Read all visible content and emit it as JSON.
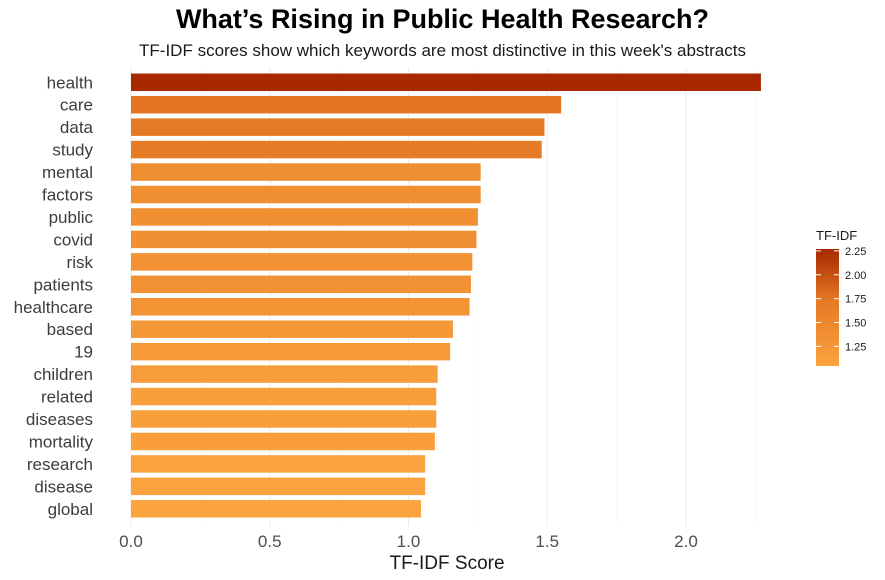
{
  "chart_data": {
    "type": "bar",
    "orientation": "horizontal",
    "title": "What’s Rising in Public Health Research?",
    "subtitle": "TF-IDF scores show which keywords are most distinctive in this week's abstracts",
    "xlabel": "TF-IDF Score",
    "ylabel": "",
    "xlim": [
      0,
      2.27
    ],
    "xticks": [
      "0.0",
      "0.5",
      "1.0",
      "1.5",
      "2.0"
    ],
    "xtick_values": [
      0,
      0.5,
      1.0,
      1.5,
      2.0
    ],
    "grid": "vertical",
    "categories": [
      "health",
      "care",
      "data",
      "study",
      "mental",
      "factors",
      "public",
      "covid",
      "risk",
      "patients",
      "healthcare",
      "based",
      "19",
      "children",
      "related",
      "diseases",
      "mortality",
      "research",
      "disease",
      "global"
    ],
    "values": [
      2.27,
      1.55,
      1.49,
      1.48,
      1.26,
      1.26,
      1.25,
      1.245,
      1.23,
      1.225,
      1.22,
      1.16,
      1.15,
      1.105,
      1.1,
      1.1,
      1.095,
      1.06,
      1.06,
      1.045
    ],
    "legend": {
      "title": "TF-IDF",
      "position": "right",
      "breaks": [
        "2.25",
        "2.00",
        "1.75",
        "1.50",
        "1.25"
      ],
      "break_values": [
        2.25,
        2.0,
        1.75,
        1.5,
        1.25
      ],
      "range": [
        1.045,
        2.27
      ]
    },
    "colors": {
      "low": "#fba33e",
      "mid": "#e0701f",
      "high": "#a82800"
    }
  }
}
